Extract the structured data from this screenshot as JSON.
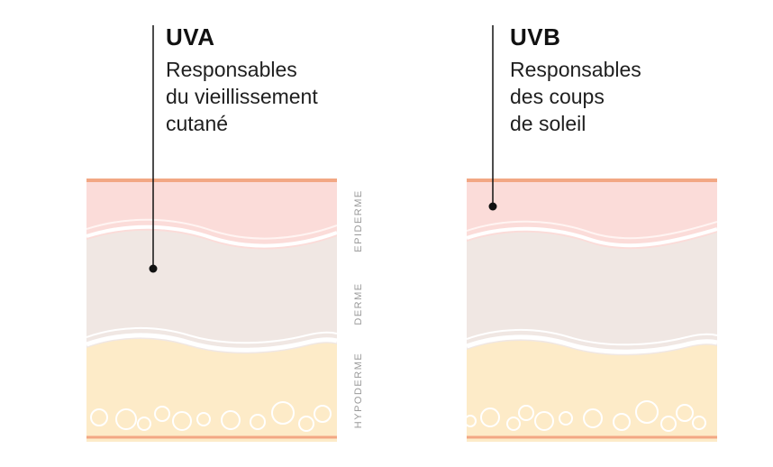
{
  "uva": {
    "title": "UVA",
    "description": "Responsables\ndu vieillissement\ncutané"
  },
  "uvb": {
    "title": "UVB",
    "description": "Responsables\ndes coups\nde soleil"
  },
  "layers": {
    "epidermis": "EPIDERME",
    "dermis": "DERME",
    "hypodermis": "HYPODERME"
  },
  "colors": {
    "surface": "#f2a784",
    "epidermis": "#fbdcd9",
    "dermis": "#f0e7e3",
    "hypodermis": "#fdebc8",
    "base_line": "#f2a784",
    "marker": "#111111"
  }
}
